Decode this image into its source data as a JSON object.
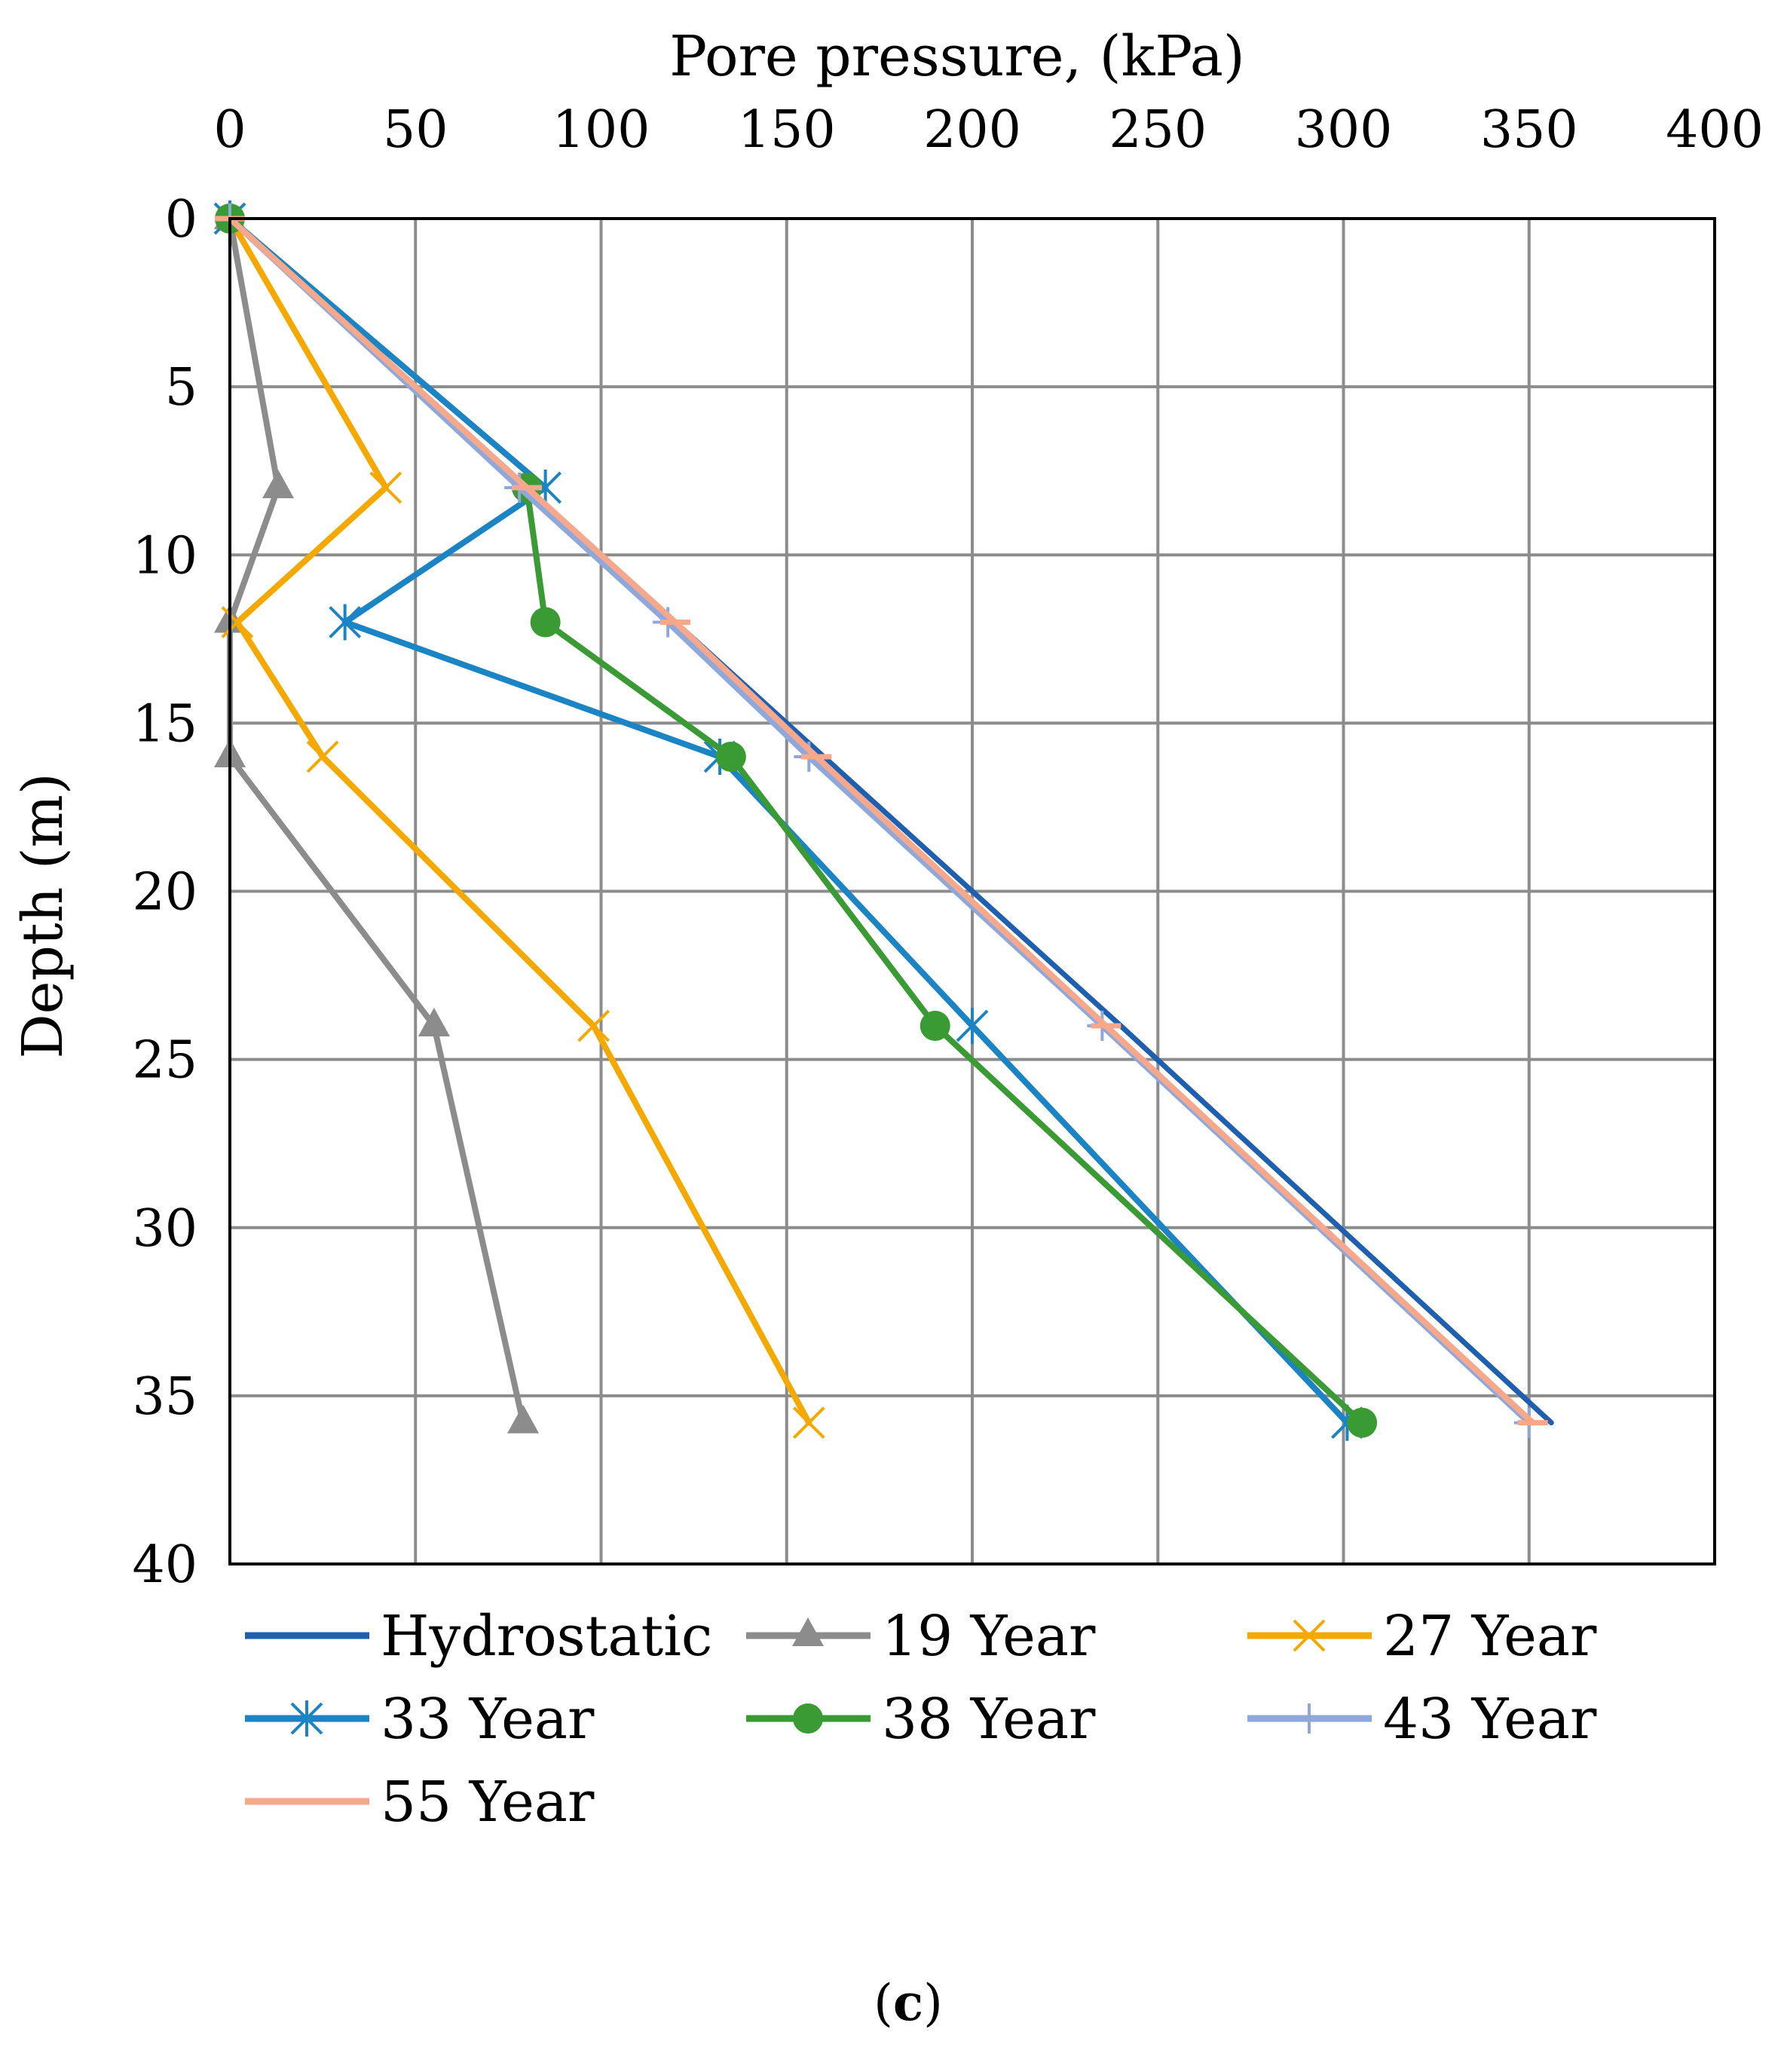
{
  "chart_data": {
    "type": "line",
    "title": "",
    "xlabel": "Pore pressure, (kPa)",
    "ylabel": "Depth (m)",
    "xlim": [
      0,
      400
    ],
    "ylim": [
      0,
      40
    ],
    "x_ticks": [
      "0",
      "50",
      "100",
      "150",
      "200",
      "250",
      "300",
      "350",
      "400"
    ],
    "y_ticks": [
      "0",
      "5",
      "10",
      "15",
      "20",
      "25",
      "30",
      "35",
      "40"
    ],
    "x_axis_position": "top",
    "y_axis_inverted": true,
    "grid": true,
    "legend_position": "bottom",
    "caption": {
      "open": "(",
      "letter": "c",
      "close": ")"
    },
    "series": [
      {
        "name": "Hydrostatic",
        "color": "#1f5fb0",
        "marker": "none",
        "points": [
          [
            0,
            0
          ],
          [
            80,
            8
          ],
          [
            120,
            12
          ],
          [
            160,
            16
          ],
          [
            240,
            24
          ],
          [
            356,
            35.8
          ]
        ]
      },
      {
        "name": "19 Year",
        "color": "#8c8c8c",
        "marker": "triangle",
        "points": [
          [
            0,
            0
          ],
          [
            13,
            8
          ],
          [
            0,
            12
          ],
          [
            0,
            16
          ],
          [
            55,
            24
          ],
          [
            79,
            35.8
          ]
        ]
      },
      {
        "name": "27 Year",
        "color": "#f5a800",
        "marker": "x",
        "points": [
          [
            0,
            0
          ],
          [
            42,
            8
          ],
          [
            2,
            12
          ],
          [
            25,
            16
          ],
          [
            98,
            24
          ],
          [
            156,
            35.8
          ]
        ]
      },
      {
        "name": "33 Year",
        "color": "#1b84c4",
        "marker": "star",
        "points": [
          [
            0,
            0
          ],
          [
            85,
            8
          ],
          [
            31,
            12
          ],
          [
            132,
            16
          ],
          [
            200,
            24
          ],
          [
            301,
            35.8
          ]
        ]
      },
      {
        "name": "38 Year",
        "color": "#3a9a34",
        "marker": "circle",
        "points": [
          [
            0,
            0
          ],
          [
            80,
            8
          ],
          [
            85,
            12
          ],
          [
            135,
            16
          ],
          [
            190,
            24
          ],
          [
            305,
            35.8
          ]
        ]
      },
      {
        "name": "43 Year",
        "color": "#8ea8dc",
        "marker": "plus",
        "points": [
          [
            0,
            0
          ],
          [
            78,
            8
          ],
          [
            118,
            12
          ],
          [
            156,
            16
          ],
          [
            235,
            24
          ],
          [
            350,
            35.8
          ]
        ]
      },
      {
        "name": "55 Year",
        "color": "#f6a88c",
        "marker": "dash",
        "points": [
          [
            0,
            0
          ],
          [
            80,
            8
          ],
          [
            120,
            12
          ],
          [
            158,
            16
          ],
          [
            236,
            24
          ],
          [
            351,
            35.8
          ]
        ]
      }
    ]
  }
}
